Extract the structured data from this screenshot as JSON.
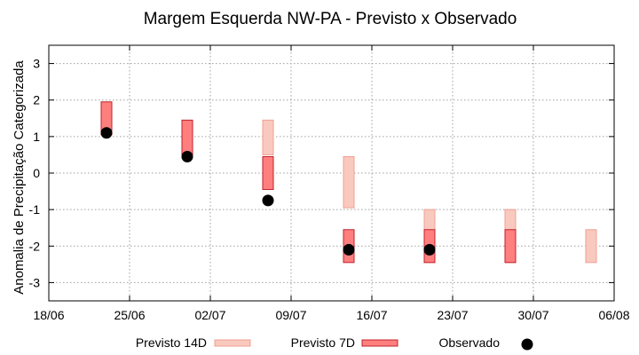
{
  "chart_data": {
    "type": "bar",
    "title": "Margem Esquerda NW-PA - Previsto x Observado",
    "ylabel": "Anomalia de Precipitação Categorizada",
    "xlabel": "",
    "x_ticks": [
      "18/06",
      "25/06",
      "02/07",
      "09/07",
      "16/07",
      "23/07",
      "30/07",
      "06/08"
    ],
    "y_ticks": [
      "3",
      "2",
      "1",
      "0",
      "-1",
      "-2",
      "-3"
    ],
    "ylim": [
      -3.5,
      3.5
    ],
    "xlim": [
      "18/06",
      "06/08"
    ],
    "grid": true,
    "legend_position": "bottom",
    "series": [
      {
        "name": "Previsto 14D",
        "kind": "range",
        "fill": "#f9c9bf",
        "stroke": "#f0a090",
        "points": [
          {
            "date": "07/07",
            "low": 0.5,
            "high": 1.45
          },
          {
            "date": "14/07",
            "low": -0.95,
            "high": 0.45
          },
          {
            "date": "21/07",
            "low": -2.45,
            "high": -1.0
          },
          {
            "date": "28/07",
            "low": -2.45,
            "high": -1.0
          },
          {
            "date": "04/08",
            "low": -2.45,
            "high": -1.55
          }
        ]
      },
      {
        "name": "Previsto 7D",
        "kind": "range",
        "fill": "#ff7f7f",
        "stroke": "#c0202a",
        "points": [
          {
            "date": "23/06",
            "low": 1.05,
            "high": 1.95
          },
          {
            "date": "30/06",
            "low": 0.5,
            "high": 1.45
          },
          {
            "date": "07/07",
            "low": -0.45,
            "high": 0.45
          },
          {
            "date": "14/07",
            "low": -2.45,
            "high": -1.55
          },
          {
            "date": "21/07",
            "low": -2.45,
            "high": -1.55
          },
          {
            "date": "28/07",
            "low": -2.45,
            "high": -1.55
          }
        ]
      },
      {
        "name": "Observado",
        "kind": "point",
        "color": "#000000",
        "points": [
          {
            "date": "23/06",
            "value": 1.1
          },
          {
            "date": "30/06",
            "value": 0.45
          },
          {
            "date": "07/07",
            "value": -0.75
          },
          {
            "date": "14/07",
            "value": -2.1
          },
          {
            "date": "21/07",
            "value": -2.1
          }
        ]
      }
    ]
  }
}
